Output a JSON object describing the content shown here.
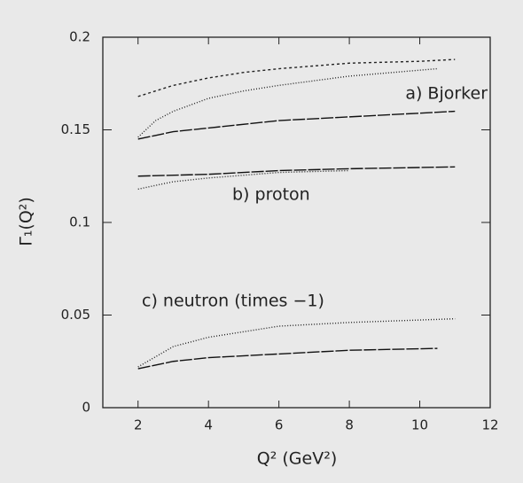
{
  "chart_data": {
    "type": "line",
    "x_label": "Q² (GeV²)",
    "y_label": "Γ₁(Q²)",
    "xlim": [
      1,
      12
    ],
    "ylim": [
      0,
      0.2
    ],
    "xticks": [
      2,
      4,
      6,
      8,
      10,
      12
    ],
    "yticks": [
      0,
      0.05,
      0.1,
      0.15,
      0.2
    ],
    "annotations": [
      "a) Bjorker",
      "b) proton",
      "c) neutron (times −1)"
    ],
    "series": [
      {
        "color": "#222",
        "dash": "3,3",
        "x": [
          2,
          3,
          4,
          5,
          6,
          8,
          10,
          11
        ],
        "values": [
          0.168,
          0.174,
          0.178,
          0.181,
          0.183,
          0.186,
          0.187,
          0.188
        ]
      },
      {
        "color": "#222",
        "dash": "1,2",
        "x": [
          2,
          2.5,
          3,
          4,
          5,
          6,
          8,
          10.5
        ],
        "values": [
          0.146,
          0.155,
          0.16,
          0.167,
          0.171,
          0.174,
          0.179,
          0.183
        ]
      },
      {
        "color": "#111",
        "dash": "14,2",
        "x": [
          2,
          3,
          4,
          6,
          8,
          10,
          11
        ],
        "values": [
          0.145,
          0.149,
          0.151,
          0.155,
          0.157,
          0.159,
          0.16
        ]
      },
      {
        "color": "#111",
        "dash": "14,2",
        "x": [
          2,
          4,
          6,
          8,
          11
        ],
        "values": [
          0.125,
          0.126,
          0.128,
          0.129,
          0.13
        ]
      },
      {
        "color": "#222",
        "dash": "1,2",
        "x": [
          2,
          3,
          4,
          6,
          8
        ],
        "values": [
          0.118,
          0.122,
          0.124,
          0.127,
          0.128
        ]
      },
      {
        "color": "#222",
        "dash": "1,2",
        "x": [
          2,
          3,
          4,
          6,
          8,
          11
        ],
        "values": [
          0.022,
          0.033,
          0.038,
          0.044,
          0.046,
          0.048
        ]
      },
      {
        "color": "#111",
        "dash": "14,2",
        "x": [
          2,
          3,
          4,
          6,
          8,
          10.5
        ],
        "values": [
          0.021,
          0.025,
          0.027,
          0.029,
          0.031,
          0.032
        ]
      }
    ]
  }
}
